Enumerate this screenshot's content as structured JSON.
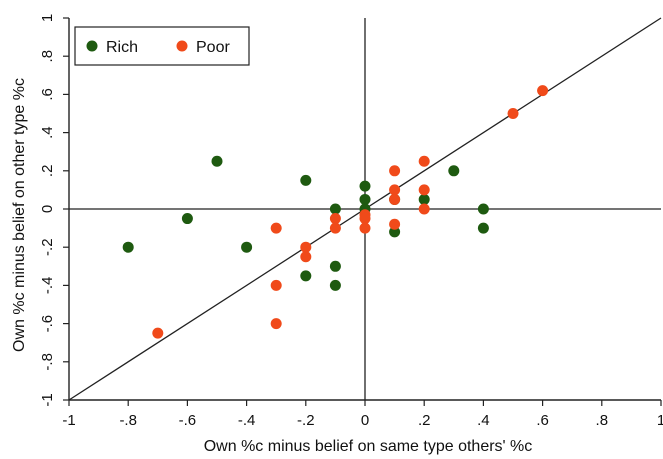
{
  "chart_data": {
    "type": "scatter",
    "title": "",
    "xlabel": "Own %c minus belief on same type others' %c",
    "ylabel": "Own %c minus belief on other type %c",
    "xlim": [
      -1,
      1
    ],
    "ylim": [
      -1,
      1
    ],
    "xticks": [
      "-1",
      "-.8",
      "-.6",
      "-.4",
      "-.2",
      "0",
      ".2",
      ".4",
      ".6",
      ".8",
      "1"
    ],
    "yticks": [
      "-1",
      "-.8",
      "-.6",
      "-.4",
      "-.2",
      "0",
      ".2",
      ".4",
      ".6",
      ".8",
      "1"
    ],
    "grid": false,
    "reference_lines": [
      "x=0",
      "y=0",
      "y=x"
    ],
    "legend": {
      "placement": "top-left"
    },
    "series": [
      {
        "name": "Rich",
        "color": "#1e5a10",
        "points": [
          [
            -0.8,
            -0.2
          ],
          [
            -0.6,
            -0.05
          ],
          [
            -0.5,
            0.25
          ],
          [
            -0.4,
            -0.2
          ],
          [
            -0.2,
            0.15
          ],
          [
            -0.2,
            -0.35
          ],
          [
            -0.1,
            0.0
          ],
          [
            -0.1,
            -0.3
          ],
          [
            -0.1,
            -0.4
          ],
          [
            0.0,
            0.12
          ],
          [
            0.0,
            0.05
          ],
          [
            0.0,
            0.0
          ],
          [
            0.1,
            0.05
          ],
          [
            0.1,
            -0.12
          ],
          [
            0.2,
            0.05
          ],
          [
            0.3,
            0.2
          ],
          [
            0.4,
            0.0
          ],
          [
            0.4,
            -0.1
          ]
        ]
      },
      {
        "name": "Poor",
        "color": "#f04a1a",
        "points": [
          [
            -0.7,
            -0.65
          ],
          [
            -0.3,
            -0.1
          ],
          [
            -0.3,
            -0.4
          ],
          [
            -0.3,
            -0.6
          ],
          [
            -0.2,
            -0.2
          ],
          [
            -0.2,
            -0.25
          ],
          [
            -0.1,
            -0.05
          ],
          [
            -0.1,
            -0.1
          ],
          [
            0.0,
            -0.03
          ],
          [
            0.0,
            -0.05
          ],
          [
            0.0,
            -0.1
          ],
          [
            0.1,
            0.2
          ],
          [
            0.1,
            0.1
          ],
          [
            0.1,
            0.05
          ],
          [
            0.1,
            -0.08
          ],
          [
            0.2,
            0.25
          ],
          [
            0.2,
            0.1
          ],
          [
            0.2,
            0.0
          ],
          [
            0.5,
            0.5
          ],
          [
            0.6,
            0.62
          ]
        ]
      }
    ]
  }
}
